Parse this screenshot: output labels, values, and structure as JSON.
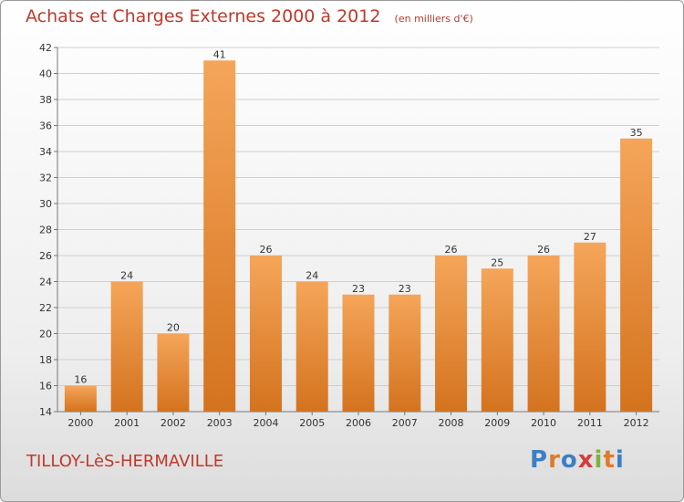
{
  "header": {
    "title": "Achats et Charges Externes 2000 à 2012",
    "unit": "(en milliers d'€)"
  },
  "footer": {
    "town": "TILLOY-LèS-HERMAVILLE",
    "logo": "Proxiti"
  },
  "colors": {
    "bar_light": "#f5a55a",
    "bar_dark": "#d4731e",
    "title": "#c0392b",
    "logo": [
      "#3b7fc4",
      "#e07a2a",
      "#3b7fc4",
      "#d63c3c",
      "#7cb342",
      "#e07a2a",
      "#3b7fc4"
    ]
  },
  "chart_data": {
    "type": "bar",
    "categories": [
      "2000",
      "2001",
      "2002",
      "2003",
      "2004",
      "2005",
      "2006",
      "2007",
      "2008",
      "2009",
      "2010",
      "2011",
      "2012"
    ],
    "values": [
      16,
      24,
      20,
      41,
      26,
      24,
      23,
      23,
      26,
      25,
      26,
      27,
      35
    ],
    "title": "Achats et Charges Externes 2000 à 2012",
    "ylim": [
      14,
      42
    ],
    "yticks": [
      14,
      16,
      18,
      20,
      22,
      24,
      26,
      28,
      30,
      32,
      34,
      36,
      38,
      40,
      42
    ],
    "grid": true,
    "legend": "none"
  }
}
